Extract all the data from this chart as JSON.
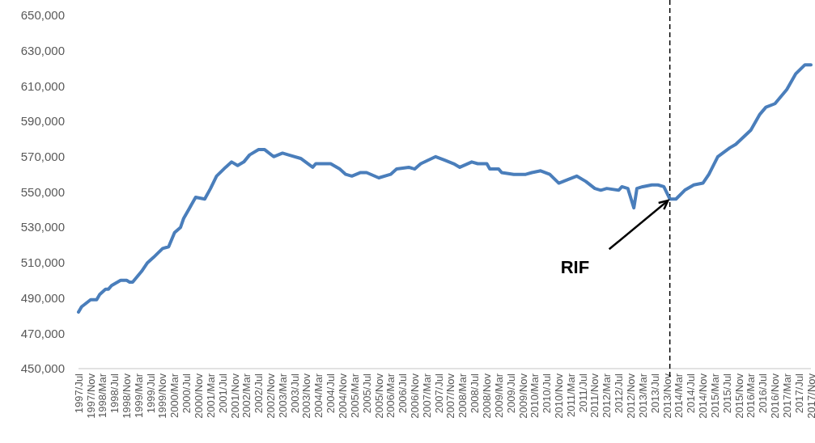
{
  "chart_data": {
    "type": "line",
    "x": [
      "1997-07",
      "1997-08",
      "1997-11",
      "1998-01",
      "1998-02",
      "1998-04",
      "1998-05",
      "1998-06",
      "1998-09",
      "1998-11",
      "1998-12",
      "1999-01",
      "1999-04",
      "1999-06",
      "1999-08",
      "1999-11",
      "2000-01",
      "2000-03",
      "2000-05",
      "2000-06",
      "2000-08",
      "2000-10",
      "2001-01",
      "2001-03",
      "2001-05",
      "2001-08",
      "2001-10",
      "2001-12",
      "2002-02",
      "2002-04",
      "2002-07",
      "2002-09",
      "2002-12",
      "2003-03",
      "2003-05",
      "2003-09",
      "2004-01",
      "2004-02",
      "2004-07",
      "2004-10",
      "2004-12",
      "2005-02",
      "2005-05",
      "2005-07",
      "2005-11",
      "2006-03",
      "2006-05",
      "2006-09",
      "2006-11",
      "2007-01",
      "2007-06",
      "2007-09",
      "2007-12",
      "2008-02",
      "2008-06",
      "2008-08",
      "2008-11",
      "2008-12",
      "2009-03",
      "2009-04",
      "2009-08",
      "2009-12",
      "2010-02",
      "2010-05",
      "2010-08",
      "2010-11",
      "2011-02",
      "2011-05",
      "2011-08",
      "2011-11",
      "2012-01",
      "2012-03",
      "2012-07",
      "2012-08",
      "2012-10",
      "2012-12",
      "2013-01",
      "2013-03",
      "2013-06",
      "2013-08",
      "2013-10",
      "2013-12",
      "2014-02",
      "2014-05",
      "2014-08",
      "2014-11",
      "2015-01",
      "2015-04",
      "2015-08",
      "2015-10",
      "2016-03",
      "2016-06",
      "2016-08",
      "2016-11",
      "2017-03",
      "2017-06",
      "2017-09",
      "2017-11"
    ],
    "series": [
      {
        "color": "#4a7ebb",
        "values": [
          482000,
          485000,
          489000,
          489000,
          492000,
          495000,
          495000,
          497000,
          500000,
          500000,
          499000,
          499000,
          505000,
          510000,
          513000,
          518000,
          519000,
          527000,
          530000,
          535000,
          541000,
          547000,
          546000,
          552000,
          559000,
          564000,
          567000,
          565000,
          567000,
          571000,
          574000,
          574000,
          570000,
          572000,
          571000,
          569000,
          564000,
          566000,
          566000,
          563000,
          560000,
          559000,
          561000,
          561000,
          558000,
          560000,
          563000,
          564000,
          563000,
          566000,
          570000,
          568000,
          566000,
          564000,
          567000,
          566000,
          566000,
          563000,
          563000,
          561000,
          560000,
          560000,
          561000,
          562000,
          560000,
          555000,
          557000,
          559000,
          556000,
          552000,
          551000,
          552000,
          551000,
          553000,
          552000,
          541000,
          552000,
          553000,
          554000,
          554000,
          553000,
          546000,
          546000,
          551000,
          554000,
          555000,
          560000,
          570000,
          575000,
          577000,
          585000,
          594000,
          598000,
          600000,
          608000,
          617000,
          622000,
          622000
        ]
      }
    ],
    "xlim": [
      "1997-07",
      "2017-11"
    ],
    "xticks": [
      {
        "value": "1997-07",
        "label": "1997/Jul"
      },
      {
        "value": "1997-11",
        "label": "1997/Nov"
      },
      {
        "value": "1998-03",
        "label": "1998/Mar"
      },
      {
        "value": "1998-07",
        "label": "1998/Jul"
      },
      {
        "value": "1998-11",
        "label": "1998/Nov"
      },
      {
        "value": "1999-03",
        "label": "1999/Mar"
      },
      {
        "value": "1999-07",
        "label": "1999/Jul"
      },
      {
        "value": "1999-11",
        "label": "1999/Nov"
      },
      {
        "value": "2000-03",
        "label": "2000/Mar"
      },
      {
        "value": "2000-07",
        "label": "2000/Jul"
      },
      {
        "value": "2000-11",
        "label": "2000/Nov"
      },
      {
        "value": "2001-03",
        "label": "2001/Mar"
      },
      {
        "value": "2001-07",
        "label": "2001/Jul"
      },
      {
        "value": "2001-11",
        "label": "2001/Nov"
      },
      {
        "value": "2002-03",
        "label": "2002/Mar"
      },
      {
        "value": "2002-07",
        "label": "2002/Jul"
      },
      {
        "value": "2002-11",
        "label": "2002/Nov"
      },
      {
        "value": "2003-03",
        "label": "2003/Mar"
      },
      {
        "value": "2003-07",
        "label": "2003/Jul"
      },
      {
        "value": "2003-11",
        "label": "2003/Nov"
      },
      {
        "value": "2004-03",
        "label": "2004/Mar"
      },
      {
        "value": "2004-07",
        "label": "2004/Jul"
      },
      {
        "value": "2004-11",
        "label": "2004/Nov"
      },
      {
        "value": "2005-03",
        "label": "2005/Mar"
      },
      {
        "value": "2005-07",
        "label": "2005/Jul"
      },
      {
        "value": "2005-11",
        "label": "2005/Nov"
      },
      {
        "value": "2006-03",
        "label": "2006/Mar"
      },
      {
        "value": "2006-07",
        "label": "2006/Jul"
      },
      {
        "value": "2006-11",
        "label": "2006/Nov"
      },
      {
        "value": "2007-03",
        "label": "2007/Mar"
      },
      {
        "value": "2007-07",
        "label": "2007/Jul"
      },
      {
        "value": "2007-11",
        "label": "2007/Nov"
      },
      {
        "value": "2008-03",
        "label": "2008/Mar"
      },
      {
        "value": "2008-07",
        "label": "2008/Jul"
      },
      {
        "value": "2008-11",
        "label": "2008/Nov"
      },
      {
        "value": "2009-03",
        "label": "2009/Mar"
      },
      {
        "value": "2009-07",
        "label": "2009/Jul"
      },
      {
        "value": "2009-11",
        "label": "2009/Nov"
      },
      {
        "value": "2010-03",
        "label": "2010/Mar"
      },
      {
        "value": "2010-07",
        "label": "2010/Jul"
      },
      {
        "value": "2010-11",
        "label": "2010/Nov"
      },
      {
        "value": "2011-03",
        "label": "2011/Mar"
      },
      {
        "value": "2011-07",
        "label": "2011/Jul"
      },
      {
        "value": "2011-11",
        "label": "2011/Nov"
      },
      {
        "value": "2012-03",
        "label": "2012/Mar"
      },
      {
        "value": "2012-07",
        "label": "2012/Jul"
      },
      {
        "value": "2012-11",
        "label": "2012/Nov"
      },
      {
        "value": "2013-03",
        "label": "2013/Mar"
      },
      {
        "value": "2013-07",
        "label": "2013/Jul"
      },
      {
        "value": "2013-11",
        "label": "2013/Nov"
      },
      {
        "value": "2014-03",
        "label": "2014/Mar"
      },
      {
        "value": "2014-07",
        "label": "2014/Jul"
      },
      {
        "value": "2014-11",
        "label": "2014/Nov"
      },
      {
        "value": "2015-03",
        "label": "2015/Mar"
      },
      {
        "value": "2015-07",
        "label": "2015/Jul"
      },
      {
        "value": "2015-11",
        "label": "2015/Nov"
      },
      {
        "value": "2016-03",
        "label": "2016/Mar"
      },
      {
        "value": "2016-07",
        "label": "2016/Jul"
      },
      {
        "value": "2016-11",
        "label": "2016/Nov"
      },
      {
        "value": "2017-03",
        "label": "2017/Mar"
      },
      {
        "value": "2017-07",
        "label": "2017/Jul"
      },
      {
        "value": "2017-11",
        "label": "2017/Nov"
      }
    ],
    "ylim": [
      450000,
      650000
    ],
    "yticks": [
      {
        "value": 450000,
        "label": "450,000"
      },
      {
        "value": 470000,
        "label": "470,000"
      },
      {
        "value": 490000,
        "label": "490,000"
      },
      {
        "value": 510000,
        "label": "510,000"
      },
      {
        "value": 530000,
        "label": "530,000"
      },
      {
        "value": 550000,
        "label": "550,000"
      },
      {
        "value": 570000,
        "label": "570,000"
      },
      {
        "value": 590000,
        "label": "590,000"
      },
      {
        "value": 610000,
        "label": "610,000"
      },
      {
        "value": 630000,
        "label": "630,000"
      },
      {
        "value": 650000,
        "label": "650,000"
      }
    ],
    "ref_lines": [
      {
        "axis": "x",
        "value": "2013-12",
        "color": "#000000",
        "line_style": "dashed"
      }
    ],
    "annotations": [
      {
        "text": "RIF",
        "x": "2013-12",
        "y": 546000
      }
    ],
    "line_style": "solid",
    "marker": "none"
  }
}
